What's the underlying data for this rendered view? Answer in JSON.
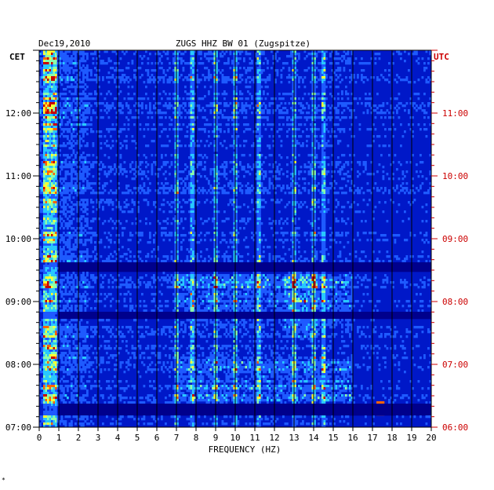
{
  "header": {
    "date": "Dec19,2010",
    "station": "ZUGS HHZ BW 01 (Zugspitze)",
    "left_zone": "CET",
    "right_zone": "UTC"
  },
  "footer_mark": "*",
  "colors": {
    "background": "#ffffff",
    "spectrogram_base": "#0018c8",
    "utc_text": "#cc0000",
    "text": "#000000"
  },
  "chart_data": {
    "type": "heatmap",
    "title": "ZUGS HHZ BW 01 (Zugspitze)",
    "subtitle": "Dec19,2010",
    "xlabel": "FREQUENCY (HZ)",
    "xlim": [
      0,
      20
    ],
    "x_ticks": [
      "0",
      "1",
      "2",
      "3",
      "4",
      "5",
      "6",
      "7",
      "8",
      "9",
      "10",
      "11",
      "12",
      "13",
      "14",
      "15",
      "16",
      "17",
      "18",
      "19",
      "20"
    ],
    "y_ticks_left": [
      {
        "label": "12:00",
        "hour": 12
      },
      {
        "label": "11:00",
        "hour": 11
      },
      {
        "label": "10:00",
        "hour": 10
      },
      {
        "label": "09:00",
        "hour": 9
      },
      {
        "label": "08:00",
        "hour": 8
      },
      {
        "label": "07:00",
        "hour": 7
      }
    ],
    "y_ticks_right": [
      "11:00",
      "10:00",
      "09:00",
      "08:00",
      "07:00",
      "06:00"
    ],
    "ylim_cet_hours": [
      7.0,
      13.0
    ],
    "colorscale": [
      "#00008c",
      "#0018c8",
      "#1e5aff",
      "#28c8ff",
      "#8cffaa",
      "#ffff32",
      "#ff6400",
      "#c80000"
    ],
    "features": {
      "low_freq_band_hz": [
        0.2,
        0.9
      ],
      "persistent_lines_hz": [
        7.0,
        7.8,
        9.0,
        10.0,
        11.2,
        13.0,
        14.0,
        14.5
      ],
      "quiet_intervals_cet": [
        [
          9.47,
          9.62
        ],
        [
          8.72,
          8.82
        ],
        [
          7.18,
          7.36
        ]
      ],
      "active_intervals_cet": [
        [
          8.6,
          9.45
        ],
        [
          7.4,
          8.1
        ]
      ],
      "transient_hz": [
        17.2,
        17.6
      ],
      "transient_cet": [
        7.2,
        7.4
      ]
    }
  }
}
